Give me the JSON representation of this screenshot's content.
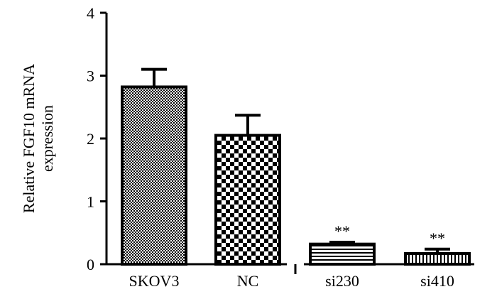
{
  "chart_data": {
    "type": "bar",
    "categories": [
      "SKOV3",
      "NC",
      "si230",
      "si410"
    ],
    "values": [
      2.82,
      2.05,
      0.32,
      0.17
    ],
    "errors": [
      0.28,
      0.32,
      0.03,
      0.07
    ],
    "annotations": [
      "",
      "",
      "**",
      "**"
    ],
    "ylabel_lines": [
      "Relative FGF10 mRNA",
      "expression"
    ],
    "ylim": [
      0,
      4
    ],
    "yticks": [
      0,
      1,
      2,
      3,
      4
    ],
    "grid": false,
    "legend": "none",
    "colors": {
      "stroke": "#000000",
      "background": "#ffffff"
    },
    "patterns": [
      "fine-dots",
      "checkerboard",
      "horizontal-stripes",
      "vertical-stripes"
    ]
  }
}
